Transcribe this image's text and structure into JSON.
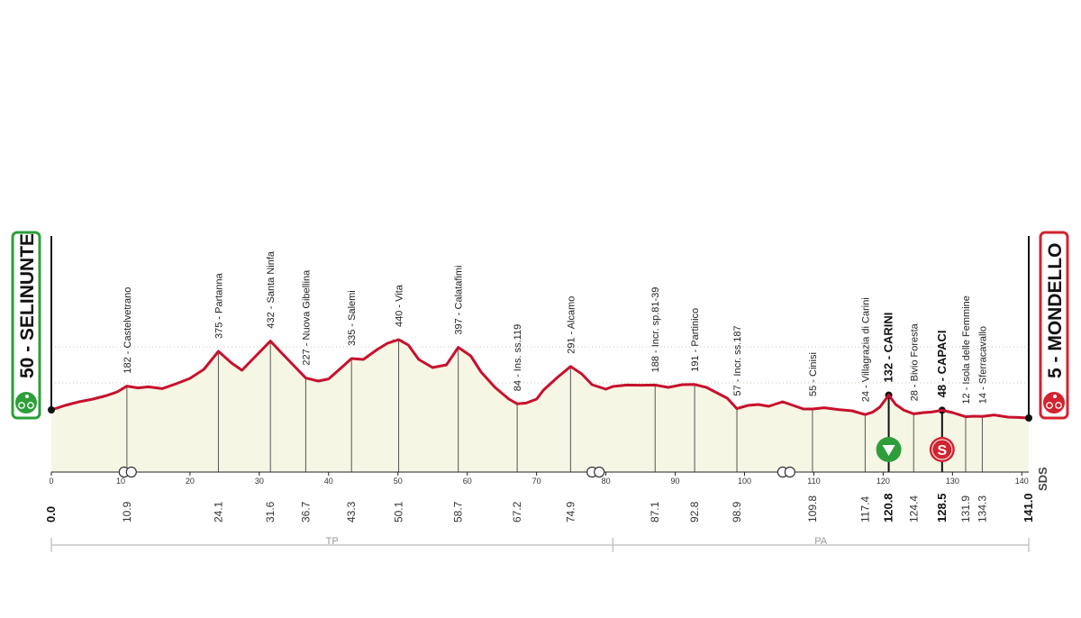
{
  "chart_data": {
    "type": "area",
    "title": "",
    "xlabel": "",
    "ylabel": "",
    "xlim": [
      0,
      141
    ],
    "ylim": [
      0,
      460
    ],
    "x_ticks": [
      0,
      10,
      20,
      30,
      40,
      50,
      60,
      70,
      80,
      90,
      100,
      110,
      120,
      130,
      140
    ],
    "y_ticks": [
      0,
      200,
      400
    ],
    "grid": true,
    "series": [
      {
        "x": [
          0,
          2,
          4,
          6,
          8,
          9.5,
          10.9,
          12.5,
          14,
          16,
          18,
          20,
          22,
          24.1,
          26,
          27.5,
          29,
          31.6,
          33,
          35,
          36.7,
          38.5,
          40,
          42,
          43.3,
          45,
          47,
          48.5,
          50.1,
          51.5,
          53,
          55,
          57,
          58.7,
          60.5,
          62,
          64,
          66,
          67.2,
          68.5,
          70,
          71,
          73,
          74.9,
          76.5,
          78,
          80,
          81,
          83,
          85,
          87.1,
          89,
          91,
          92.8,
          94.5,
          96,
          97.5,
          98.9,
          100.5,
          102,
          103.5,
          105.5,
          107,
          108.5,
          109.8,
          111.5,
          113.5,
          115.5,
          117.4,
          118.5,
          119.5,
          120.8,
          121.8,
          123,
          124.4,
          125.8,
          127,
          128.5,
          130,
          131.9,
          133,
          134.3,
          136,
          138,
          139.5,
          141
        ],
        "y": [
          50,
          75,
          95,
          110,
          130,
          150,
          182,
          172,
          178,
          168,
          195,
          225,
          275,
          375,
          310,
          270,
          330,
          432,
          375,
          295,
          227,
          210,
          222,
          290,
          335,
          330,
          385,
          420,
          440,
          410,
          330,
          285,
          300,
          397,
          350,
          260,
          175,
          110,
          84,
          88,
          110,
          160,
          230,
          291,
          250,
          190,
          165,
          180,
          188,
          187,
          188,
          175,
          190,
          191,
          175,
          145,
          115,
          57,
          75,
          80,
          70,
          95,
          75,
          55,
          55,
          62,
          52,
          45,
          24,
          38,
          65,
          132,
          80,
          48,
          28,
          35,
          38,
          48,
          35,
          12,
          15,
          14,
          22,
          10,
          8,
          5
        ]
      }
    ],
    "points": [
      {
        "km": 10.9,
        "alt": 182,
        "label": "182 - Castelvetrano",
        "bold": false
      },
      {
        "km": 24.1,
        "alt": 375,
        "label": "375 - Partanna",
        "bold": false
      },
      {
        "km": 31.6,
        "alt": 432,
        "label": "432 - Santa Ninfa",
        "bold": false
      },
      {
        "km": 36.7,
        "alt": 227,
        "label": "227 - Nuova Gibellina",
        "bold": false
      },
      {
        "km": 43.3,
        "alt": 335,
        "label": "335 - Salemi",
        "bold": false
      },
      {
        "km": 50.1,
        "alt": 440,
        "label": "440 - Vita",
        "bold": false
      },
      {
        "km": 58.7,
        "alt": 397,
        "label": "397 - Calatafimi",
        "bold": false
      },
      {
        "km": 67.2,
        "alt": 84,
        "label": "84 - Ins. ss.119",
        "bold": false
      },
      {
        "km": 74.9,
        "alt": 291,
        "label": "291 - Alcamo",
        "bold": false
      },
      {
        "km": 87.1,
        "alt": 188,
        "label": "188 - Incr. sp.81-39",
        "bold": false
      },
      {
        "km": 92.8,
        "alt": 191,
        "label": "191 - Partinico",
        "bold": false
      },
      {
        "km": 98.9,
        "alt": 57,
        "label": "57 - Incr. ss.187",
        "bold": false
      },
      {
        "km": 109.8,
        "alt": 55,
        "label": "55 - Cinisi",
        "bold": false
      },
      {
        "km": 117.4,
        "alt": 24,
        "label": "24 - Villagrazia di Carini",
        "bold": false
      },
      {
        "km": 120.8,
        "alt": 132,
        "label": "132 - CARINI",
        "bold": true
      },
      {
        "km": 124.4,
        "alt": 28,
        "label": "28 - Bivio Foresta",
        "bold": false
      },
      {
        "km": 128.5,
        "alt": 48,
        "label": "48 - CAPACI",
        "bold": true
      },
      {
        "km": 131.9,
        "alt": 12,
        "label": "12 - Isola delle Femmine",
        "bold": false
      },
      {
        "km": 134.3,
        "alt": 14,
        "label": "14 - Sferracavallo",
        "bold": false
      }
    ],
    "km_labels": [
      {
        "km": 0,
        "text": "0.0",
        "bold": true
      },
      {
        "km": 10.9,
        "text": "10.9",
        "bold": false
      },
      {
        "km": 24.1,
        "text": "24.1",
        "bold": false
      },
      {
        "km": 31.6,
        "text": "31.6",
        "bold": false
      },
      {
        "km": 36.7,
        "text": "36.7",
        "bold": false
      },
      {
        "km": 43.3,
        "text": "43.3",
        "bold": false
      },
      {
        "km": 50.1,
        "text": "50.1",
        "bold": false
      },
      {
        "km": 58.7,
        "text": "58.7",
        "bold": false
      },
      {
        "km": 67.2,
        "text": "67.2",
        "bold": false
      },
      {
        "km": 74.9,
        "text": "74.9",
        "bold": false
      },
      {
        "km": 87.1,
        "text": "87.1",
        "bold": false
      },
      {
        "km": 92.8,
        "text": "92.8",
        "bold": false
      },
      {
        "km": 98.9,
        "text": "98.9",
        "bold": false
      },
      {
        "km": 109.8,
        "text": "109.8",
        "bold": false
      },
      {
        "km": 117.4,
        "text": "117.4",
        "bold": false
      },
      {
        "km": 120.8,
        "text": "120.8",
        "bold": true
      },
      {
        "km": 124.4,
        "text": "124.4",
        "bold": false
      },
      {
        "km": 128.5,
        "text": "128.5",
        "bold": true
      },
      {
        "km": 131.9,
        "text": "131.9",
        "bold": false
      },
      {
        "km": 134.3,
        "text": "134.3",
        "bold": false
      },
      {
        "km": 141,
        "text": "141.0",
        "bold": true
      }
    ],
    "start": {
      "km": 0,
      "alt": 50,
      "label": "50 - SELINUNTE",
      "color": "#2e9e3a"
    },
    "finish": {
      "km": 141,
      "alt": 5,
      "label": "5 - MONDELLO",
      "color": "#d3232f"
    },
    "markers": [
      {
        "km": 120.8,
        "type": "intermediate-sprint",
        "color": "#2e9e3a"
      },
      {
        "km": 128.5,
        "type": "special-sprint",
        "symbol": "S",
        "color": "#d3232f"
      }
    ],
    "tunnels_km": [
      10.5,
      78,
      105.5
    ],
    "provinces": [
      {
        "name": "TP",
        "from_km": 0,
        "to_km": 81
      },
      {
        "name": "PA",
        "from_km": 81,
        "to_km": 141
      }
    ],
    "logo_text": "SDS",
    "colors": {
      "profile": "#c8102e",
      "fill": "#f6f6e4",
      "start": "#2e9e3a",
      "finish": "#d3232f"
    }
  }
}
